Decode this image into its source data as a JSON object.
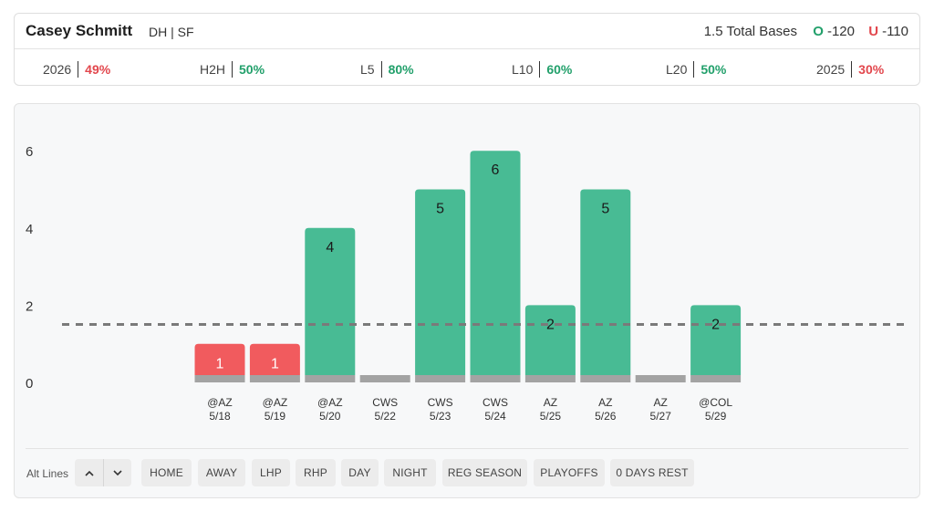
{
  "header": {
    "player_name": "Casey Schmitt",
    "position_team": "DH | SF",
    "prop_line": "1.5 Total Bases",
    "over": {
      "tag": "O",
      "odds": "-120"
    },
    "under": {
      "tag": "U",
      "odds": "-110"
    }
  },
  "stats": [
    {
      "label": "2026",
      "value": "49%",
      "status": "bad"
    },
    {
      "label": "H2H",
      "value": "50%",
      "status": "good"
    },
    {
      "label": "L5",
      "value": "80%",
      "status": "good"
    },
    {
      "label": "L10",
      "value": "60%",
      "status": "good"
    },
    {
      "label": "L20",
      "value": "50%",
      "status": "good"
    },
    {
      "label": "2025",
      "value": "30%",
      "status": "bad"
    }
  ],
  "chart_data": {
    "type": "bar",
    "categories": [
      "@AZ 5/18",
      "@AZ 5/19",
      "@AZ 5/20",
      "CWS 5/22",
      "CWS 5/23",
      "CWS 5/24",
      "AZ 5/25",
      "AZ 5/26",
      "AZ 5/27",
      "@COL 5/29"
    ],
    "opponents": [
      "@AZ",
      "@AZ",
      "@AZ",
      "CWS",
      "CWS",
      "CWS",
      "AZ",
      "AZ",
      "AZ",
      "@COL"
    ],
    "dates": [
      "5/18",
      "5/19",
      "5/20",
      "5/22",
      "5/23",
      "5/24",
      "5/25",
      "5/26",
      "5/27",
      "5/29"
    ],
    "values": [
      1,
      1,
      4,
      0,
      5,
      6,
      2,
      5,
      0,
      2
    ],
    "value_labels": [
      "1",
      "1",
      "4",
      "",
      "5",
      "6",
      "2",
      "5",
      "",
      "2"
    ],
    "line": 1.5,
    "yticks": [
      0,
      2,
      4,
      6
    ],
    "ylim": [
      0,
      6
    ],
    "colors": {
      "over": "#48bb94",
      "under": "#f15b5e",
      "base": "#a3a3a3",
      "line": "#7a7a7a"
    }
  },
  "footer": {
    "alt_lines_label": "Alt Lines",
    "stepper_up_icon": "chevron-up-icon",
    "stepper_down_icon": "chevron-down-icon",
    "filters": [
      "HOME",
      "AWAY",
      "LHP",
      "RHP",
      "DAY",
      "NIGHT",
      "REG SEASON",
      "PLAYOFFS",
      "0 DAYS REST"
    ]
  }
}
